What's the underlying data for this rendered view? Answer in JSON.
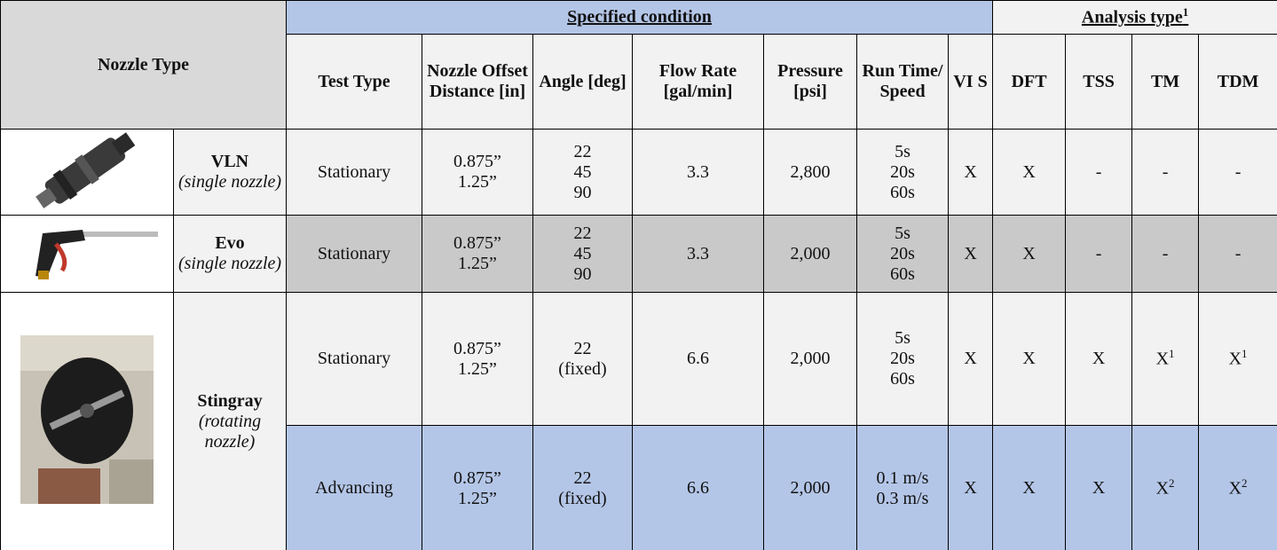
{
  "header": {
    "nozzle_type": "Nozzle Type",
    "specified_condition": "Specified condition",
    "analysis_type": "Analysis type",
    "analysis_type_note": "1"
  },
  "columns": [
    "Test Type",
    "Nozzle Offset Distance [in]",
    "Angle [deg]",
    "Flow Rate [gal/min]",
    "Pressure [psi]",
    "Run Time/ Speed",
    "VI S",
    "DFT",
    "TSS",
    "TM",
    "TDM"
  ],
  "rows": [
    {
      "nozzle": "VLN",
      "nozzle_note": "(single nozzle)",
      "tests": [
        [
          "Stationary",
          [
            "0.875”",
            "1.25”"
          ],
          [
            "22",
            "45",
            "90"
          ],
          "3.3",
          "2,800",
          [
            "5s",
            "20s",
            "60s"
          ],
          "X",
          "X",
          "-",
          "-",
          "-"
        ]
      ]
    },
    {
      "nozzle": "Evo",
      "nozzle_note": "(single nozzle)",
      "tests": [
        [
          "Stationary",
          [
            "0.875”",
            "1.25”"
          ],
          [
            "22",
            "45",
            "90"
          ],
          "3.3",
          "2,000",
          [
            "5s",
            "20s",
            "60s"
          ],
          "X",
          "X",
          "-",
          "-",
          "-"
        ]
      ]
    },
    {
      "nozzle": "Stingray",
      "nozzle_note": "(rotating nozzle)",
      "tests": [
        [
          "Stationary",
          [
            "0.875”",
            "1.25”"
          ],
          [
            "22",
            "(fixed)"
          ],
          "6.6",
          "2,000",
          [
            "5s",
            "20s",
            "60s"
          ],
          "X",
          "X",
          "X",
          {
            "text": "X",
            "note": "1"
          },
          {
            "text": "X",
            "note": "1"
          }
        ],
        [
          "Advancing",
          [
            "0.875”",
            "1.25”"
          ],
          [
            "22",
            "(fixed)"
          ],
          "6.6",
          "2,000",
          [
            "0.1 m/s",
            "0.3 m/s"
          ],
          "X",
          "X",
          "X",
          {
            "text": "X",
            "note": "2"
          },
          {
            "text": "X",
            "note": "2"
          }
        ]
      ]
    }
  ]
}
